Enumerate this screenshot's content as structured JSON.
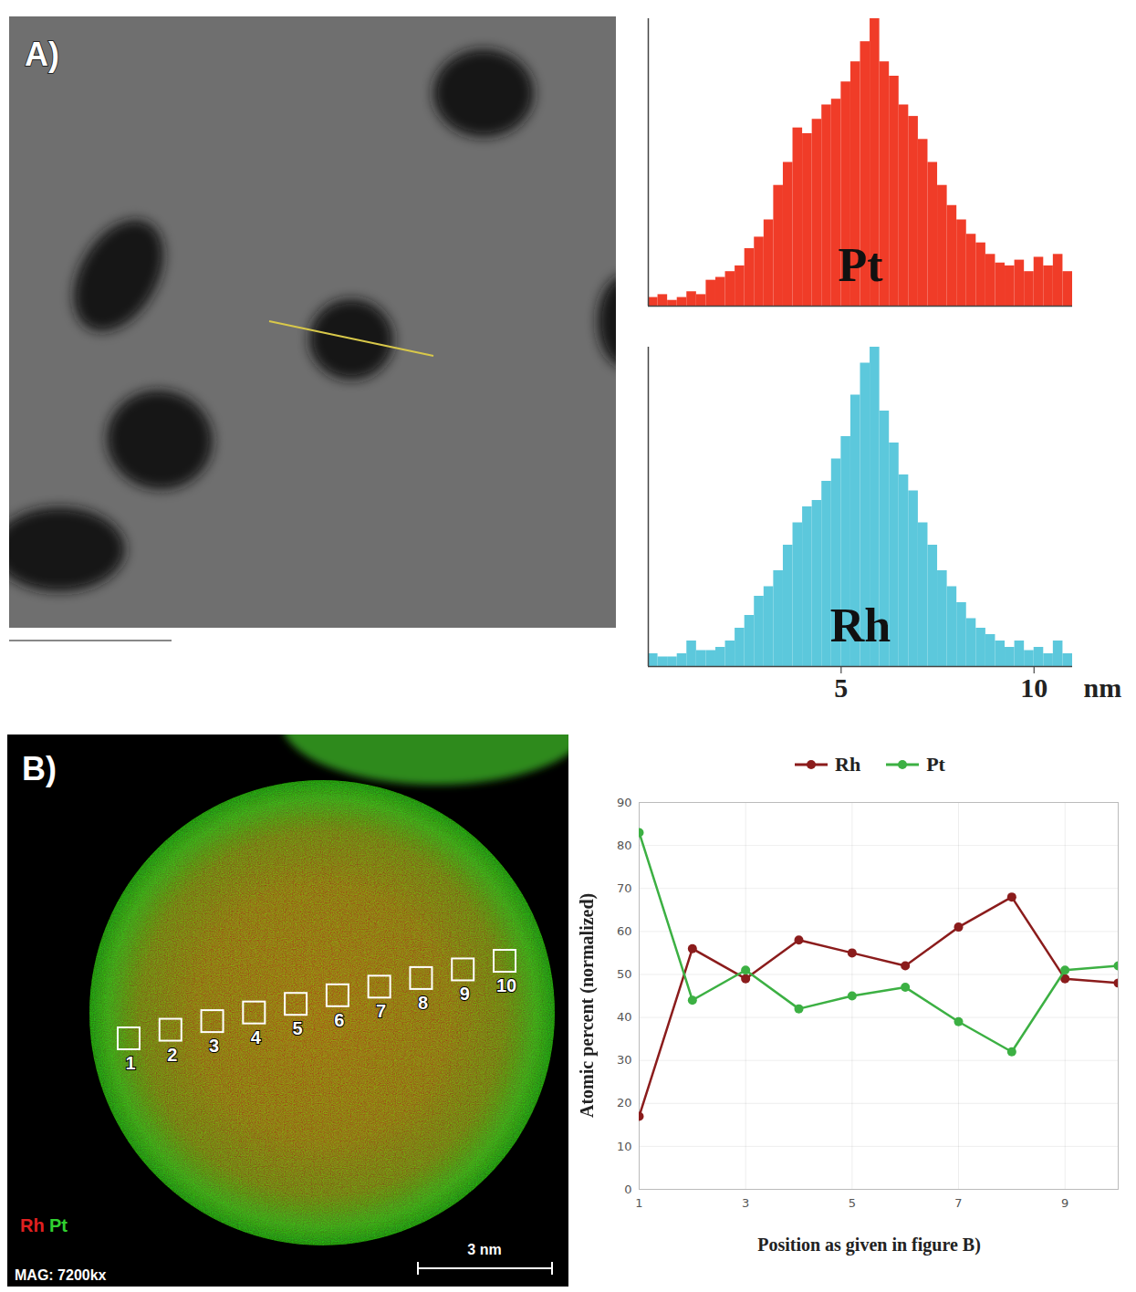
{
  "chart_data": [
    {
      "type": "histogram",
      "name": "Pt",
      "color": "#f03c28",
      "bins": [
        0,
        0.25,
        0.5,
        0.75,
        1,
        1.25,
        1.5,
        1.75,
        2,
        2.25,
        2.5,
        2.75,
        3,
        3.25,
        3.5,
        3.75,
        4,
        4.25,
        4.5,
        4.75,
        5,
        5.25,
        5.5,
        5.75,
        6,
        6.25,
        6.5,
        6.75,
        7,
        7.25,
        7.5,
        7.75,
        8,
        8.25,
        8.5,
        8.75,
        9,
        9.25,
        9.5,
        9.75,
        10,
        10.25,
        10.5,
        10.75,
        11
      ],
      "values": [
        3,
        4,
        2,
        3,
        5,
        4,
        9,
        10,
        12,
        14,
        20,
        24,
        30,
        42,
        50,
        62,
        60,
        65,
        70,
        72,
        78,
        85,
        92,
        100,
        85,
        80,
        70,
        66,
        58,
        50,
        42,
        35,
        30,
        25,
        22,
        18,
        15,
        14,
        16,
        12,
        17,
        14,
        18,
        12
      ],
      "xlim": [
        0,
        11
      ],
      "ylim": [
        0,
        100
      ],
      "tick_labels": false
    },
    {
      "type": "histogram",
      "name": "Rh",
      "color": "#5cc8dc",
      "bins": [
        0,
        0.25,
        0.5,
        0.75,
        1,
        1.25,
        1.5,
        1.75,
        2,
        2.25,
        2.5,
        2.75,
        3,
        3.25,
        3.5,
        3.75,
        4,
        4.25,
        4.5,
        4.75,
        5,
        5.25,
        5.5,
        5.75,
        6,
        6.25,
        6.5,
        6.75,
        7,
        7.25,
        7.5,
        7.75,
        8,
        8.25,
        8.5,
        8.75,
        9,
        9.25,
        9.5,
        9.75,
        10,
        10.25,
        10.5,
        10.75,
        11
      ],
      "values": [
        4,
        3,
        3,
        4,
        8,
        5,
        5,
        6,
        8,
        12,
        16,
        22,
        25,
        30,
        38,
        45,
        50,
        52,
        58,
        65,
        72,
        85,
        95,
        100,
        80,
        70,
        60,
        55,
        45,
        38,
        30,
        25,
        20,
        15,
        12,
        10,
        8,
        6,
        8,
        5,
        6,
        4,
        8,
        4
      ],
      "xlim": [
        0,
        11
      ],
      "ylim": [
        0,
        100
      ],
      "xticks": [
        5,
        10
      ],
      "x_label": "nm",
      "tick_labels": "x"
    },
    {
      "type": "line",
      "x": [
        1,
        2,
        3,
        4,
        5,
        6,
        7,
        8,
        9,
        10
      ],
      "series": [
        {
          "name": "Rh",
          "color": "#8b1c1c",
          "marker": "circle",
          "values": [
            17,
            56,
            49,
            58,
            55,
            52,
            61,
            68,
            49,
            48
          ]
        },
        {
          "name": "Pt",
          "color": "#3cb043",
          "marker": "circle",
          "values": [
            83,
            44,
            51,
            42,
            45,
            47,
            39,
            32,
            51,
            52
          ]
        }
      ],
      "xlim": [
        1,
        10
      ],
      "xticks": [
        1,
        3,
        5,
        7,
        9
      ],
      "ylim": [
        0,
        90
      ],
      "yticks": [
        0,
        10,
        20,
        30,
        40,
        50,
        60,
        70,
        80,
        90
      ],
      "y_label": "Atomic percent (normalized)",
      "x_label": "Position as given in figure B)",
      "grid": true,
      "legend": "top"
    }
  ],
  "images": [
    {
      "panel": "A)"
    },
    {
      "panel": "B)",
      "channels": [
        {
          "name": "Rh",
          "color": "#e02020"
        },
        {
          "name": "Pt",
          "color": "#30d030"
        }
      ],
      "positions": [
        "1",
        "2",
        "3",
        "4",
        "5",
        "6",
        "7",
        "8",
        "9",
        "10"
      ],
      "magnification": "MAG: 7200kx",
      "scale_bar": "3 nm"
    }
  ]
}
